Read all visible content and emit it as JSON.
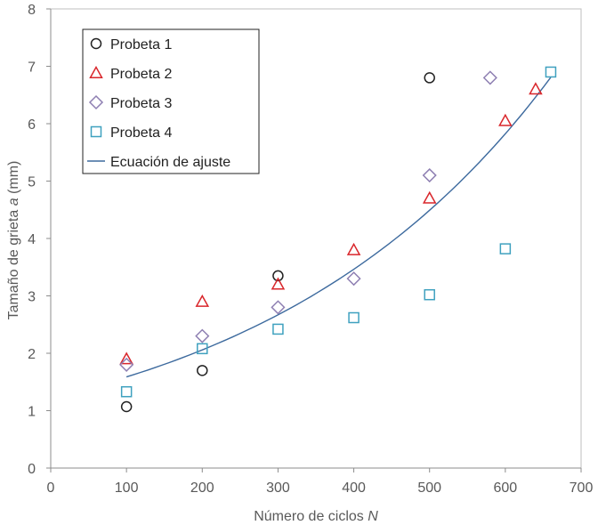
{
  "chart_data": {
    "type": "scatter",
    "title": "",
    "xlabel": {
      "prefix": "Número de ciclos ",
      "var": "N"
    },
    "ylabel": {
      "prefix": "Tamaño de grieta ",
      "var": "a",
      "suffix": " (mm)"
    },
    "xlim": [
      0,
      700
    ],
    "ylim": [
      0,
      8
    ],
    "xticks": [
      "0",
      "100",
      "200",
      "300",
      "400",
      "500",
      "600",
      "700"
    ],
    "yticks": [
      "0",
      "1",
      "2",
      "3",
      "4",
      "5",
      "6",
      "7",
      "8"
    ],
    "grid": false,
    "legend_position": "top-left",
    "series": [
      {
        "name": "Probeta 1",
        "marker": "circle",
        "color": "#222222",
        "points": [
          [
            100,
            1.07
          ],
          [
            200,
            1.7
          ],
          [
            300,
            3.35
          ],
          [
            500,
            6.8
          ]
        ]
      },
      {
        "name": "Probeta 2",
        "marker": "triangle",
        "color": "#d9262b",
        "points": [
          [
            100,
            1.9
          ],
          [
            200,
            2.9
          ],
          [
            300,
            3.2
          ],
          [
            400,
            3.8
          ],
          [
            500,
            4.7
          ],
          [
            600,
            6.05
          ],
          [
            640,
            6.6
          ]
        ]
      },
      {
        "name": "Probeta 3",
        "marker": "diamond",
        "color": "#8e7fb2",
        "points": [
          [
            100,
            1.8
          ],
          [
            200,
            2.3
          ],
          [
            300,
            2.8
          ],
          [
            400,
            3.3
          ],
          [
            500,
            5.1
          ],
          [
            580,
            6.8
          ]
        ]
      },
      {
        "name": "Probeta 4",
        "marker": "square",
        "color": "#3fa1bf",
        "points": [
          [
            100,
            1.33
          ],
          [
            200,
            2.08
          ],
          [
            300,
            2.42
          ],
          [
            400,
            2.62
          ],
          [
            500,
            3.02
          ],
          [
            600,
            3.82
          ],
          [
            660,
            6.9
          ]
        ]
      },
      {
        "name": "Ecuación de ajuste",
        "marker": "line",
        "color": "#3d6a9e",
        "x_range": [
          100,
          660
        ],
        "curve": "exponential",
        "a0": 1.224,
        "k": 0.0026
      }
    ]
  }
}
